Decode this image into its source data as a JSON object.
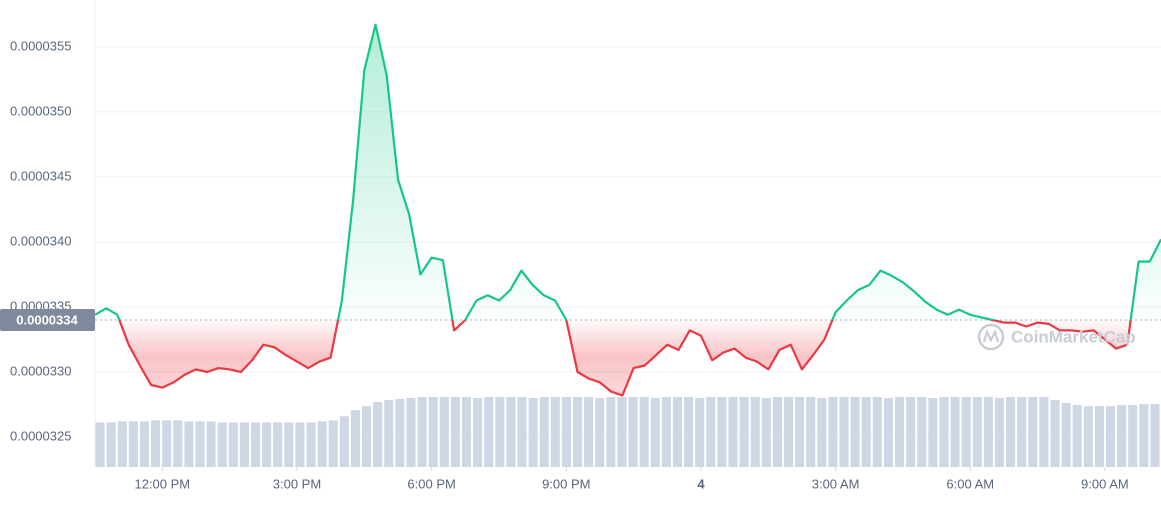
{
  "chart_data": {
    "type": "line",
    "x": [
      10.5,
      10.75,
      11,
      11.25,
      11.5,
      11.75,
      12,
      12.25,
      12.5,
      12.75,
      13,
      13.25,
      13.5,
      13.75,
      14,
      14.25,
      14.5,
      14.75,
      15,
      15.25,
      15.5,
      15.75,
      16,
      16.25,
      16.5,
      16.75,
      17,
      17.25,
      17.5,
      17.75,
      18,
      18.25,
      18.5,
      18.75,
      19,
      19.25,
      19.5,
      19.75,
      20,
      20.25,
      20.5,
      20.75,
      21,
      21.25,
      21.5,
      21.75,
      22,
      22.25,
      22.5,
      22.75,
      23,
      23.25,
      23.5,
      23.75,
      24,
      24.25,
      24.5,
      24.75,
      25,
      25.25,
      25.5,
      25.75,
      26,
      26.25,
      26.5,
      26.75,
      27,
      27.25,
      27.5,
      27.75,
      28,
      28.25,
      28.5,
      28.75,
      29,
      29.25,
      29.5,
      29.75,
      30,
      30.25,
      30.5,
      30.75,
      31,
      31.25,
      31.5,
      31.75,
      32,
      32.25,
      32.5,
      32.75,
      33,
      33.25,
      33.5,
      33.75,
      34,
      34.25
    ],
    "values": [
      3.344e-05,
      3.349e-05,
      3.344e-05,
      3.321e-05,
      3.305e-05,
      3.29e-05,
      3.288e-05,
      3.292e-05,
      3.298e-05,
      3.302e-05,
      3.3e-05,
      3.303e-05,
      3.302e-05,
      3.3e-05,
      3.309e-05,
      3.321e-05,
      3.319e-05,
      3.313e-05,
      3.308e-05,
      3.303e-05,
      3.308e-05,
      3.311e-05,
      3.355e-05,
      3.432e-05,
      3.532e-05,
      3.567e-05,
      3.528e-05,
      3.448e-05,
      3.421e-05,
      3.375e-05,
      3.388e-05,
      3.386e-05,
      3.332e-05,
      3.34e-05,
      3.355e-05,
      3.359e-05,
      3.355e-05,
      3.363e-05,
      3.378e-05,
      3.367e-05,
      3.359e-05,
      3.355e-05,
      3.34e-05,
      3.3e-05,
      3.295e-05,
      3.292e-05,
      3.285e-05,
      3.282e-05,
      3.303e-05,
      3.305e-05,
      3.313e-05,
      3.321e-05,
      3.317e-05,
      3.332e-05,
      3.328e-05,
      3.309e-05,
      3.315e-05,
      3.318e-05,
      3.311e-05,
      3.308e-05,
      3.302e-05,
      3.317e-05,
      3.321e-05,
      3.302e-05,
      3.313e-05,
      3.325e-05,
      3.346e-05,
      3.355e-05,
      3.363e-05,
      3.367e-05,
      3.378e-05,
      3.374e-05,
      3.369e-05,
      3.362e-05,
      3.354e-05,
      3.348e-05,
      3.344e-05,
      3.348e-05,
      3.344e-05,
      3.342e-05,
      3.34e-05,
      3.338e-05,
      3.338e-05,
      3.335e-05,
      3.338e-05,
      3.337e-05,
      3.332e-05,
      3.332e-05,
      3.331e-05,
      3.332e-05,
      3.325e-05,
      3.318e-05,
      3.321e-05,
      3.385e-05,
      3.385e-05,
      3.402e-05
    ],
    "volume": [
      44,
      44,
      45,
      45,
      45,
      46,
      46,
      46,
      45,
      45,
      45,
      44,
      44,
      44,
      44,
      44,
      44,
      44,
      44,
      44,
      45,
      46,
      50,
      56,
      60,
      64,
      66,
      67,
      68,
      69,
      69,
      69,
      69,
      69,
      68,
      69,
      69,
      69,
      69,
      68,
      69,
      69,
      69,
      69,
      69,
      68,
      69,
      69,
      69,
      69,
      68,
      69,
      69,
      69,
      68,
      69,
      69,
      69,
      69,
      69,
      68,
      69,
      69,
      69,
      69,
      68,
      69,
      69,
      69,
      69,
      69,
      68,
      69,
      69,
      69,
      68,
      69,
      69,
      69,
      69,
      69,
      68,
      69,
      69,
      69,
      69,
      66,
      63,
      61,
      60,
      60,
      60,
      61,
      61,
      62,
      62
    ],
    "color_up": "#16c784",
    "color_down": "#ea3943",
    "volume_color": "#cfd6e4",
    "reference_price": 3.34e-05,
    "ylim": [
      3.227e-05,
      3.586e-05
    ],
    "yticks": [
      3.25e-05,
      {
        "value": 3.3e-05,
        "label": "0.0000330"
      },
      3.35e-05,
      {
        "value": 3.4e-05,
        "label": "0.0000340"
      },
      3.45e-05,
      {
        "value": 3.5e-05,
        "label": "0.0000350"
      },
      3.55e-05
    ],
    "xlim": [
      10.5,
      34.25
    ],
    "xticks": [
      {
        "value": 12,
        "label": "12:00 PM"
      },
      {
        "value": 15,
        "label": "3:00 PM"
      },
      {
        "value": 18,
        "label": "6:00 PM"
      },
      {
        "value": 21,
        "label": "9:00 PM"
      },
      {
        "value": 24,
        "label": "4"
      },
      {
        "value": 27,
        "label": "3:00 AM"
      },
      {
        "value": 30,
        "label": "6:00 AM"
      },
      {
        "value": 33,
        "label": "9:00 AM"
      }
    ],
    "grid": true,
    "watermark": "CoinMarketCap"
  }
}
